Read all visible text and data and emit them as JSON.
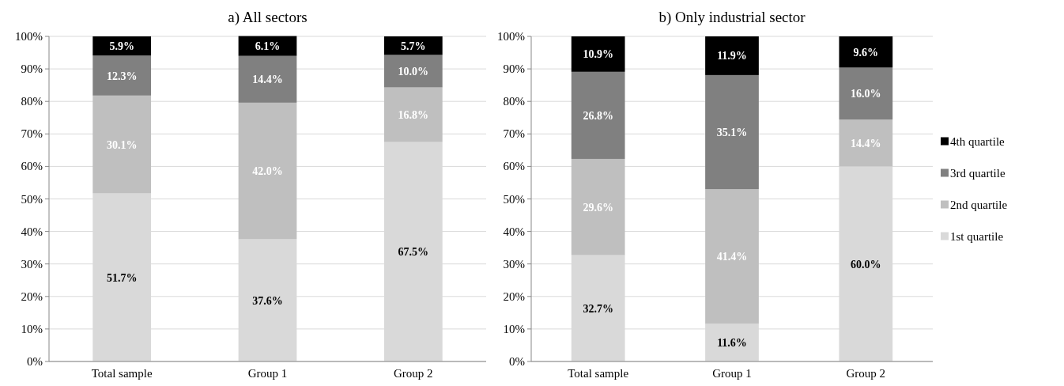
{
  "chart_data": [
    {
      "type": "bar",
      "title": "a) All sectors",
      "stacked": true,
      "categories": [
        "Total sample",
        "Group 1",
        "Group 2"
      ],
      "series": [
        {
          "color": "#d9d9d9",
          "values": [
            51.7,
            37.6,
            67.5
          ],
          "value_labels": [
            "51.7%",
            "37.6%",
            "67.5%"
          ]
        },
        {
          "color": "#bfbfbf",
          "values": [
            30.1,
            42.0,
            16.8
          ],
          "value_labels": [
            "30.1%",
            "42.0%",
            "16.8%"
          ]
        },
        {
          "color": "#808080",
          "values": [
            12.3,
            14.4,
            10.0
          ],
          "value_labels": [
            "12.3%",
            "14.4%",
            "10.0%"
          ]
        },
        {
          "color": "#000000",
          "values": [
            5.9,
            6.1,
            5.7
          ],
          "value_labels": [
            "5.9%",
            "6.1%",
            "5.7%"
          ]
        }
      ],
      "ylim": [
        0,
        100
      ],
      "yticks": [
        {
          "value": 0,
          "label": "0%"
        },
        {
          "value": 10,
          "label": "10%"
        },
        {
          "value": 20,
          "label": "20%"
        },
        {
          "value": 30,
          "label": "30%"
        },
        {
          "value": 40,
          "label": "40%"
        },
        {
          "value": 50,
          "label": "50%"
        },
        {
          "value": 60,
          "label": "60%"
        },
        {
          "value": 70,
          "label": "70%"
        },
        {
          "value": 80,
          "label": "80%"
        },
        {
          "value": 90,
          "label": "90%"
        },
        {
          "value": 100,
          "label": "100%"
        }
      ],
      "grid": "y",
      "legend": false
    },
    {
      "type": "bar",
      "title": "b) Only industrial sector",
      "stacked": true,
      "categories": [
        "Total sample",
        "Group 1",
        "Group 2"
      ],
      "series": [
        {
          "name": "1st quartile",
          "color": "#d9d9d9",
          "values": [
            32.7,
            11.6,
            60.0
          ],
          "value_labels": [
            "32.7%",
            "11.6%",
            "60.0%"
          ]
        },
        {
          "name": "2nd quartile",
          "color": "#bfbfbf",
          "values": [
            29.6,
            41.4,
            14.4
          ],
          "value_labels": [
            "29.6%",
            "41.4%",
            "14.4%"
          ]
        },
        {
          "name": "3rd quartile",
          "color": "#808080",
          "values": [
            26.8,
            35.1,
            16.0
          ],
          "value_labels": [
            "26.8%",
            "35.1%",
            "16.0%"
          ]
        },
        {
          "name": "4th quartile",
          "color": "#000000",
          "values": [
            10.9,
            11.9,
            9.6
          ],
          "value_labels": [
            "10.9%",
            "11.9%",
            "9.6%"
          ]
        }
      ],
      "ylim": [
        0,
        100
      ],
      "yticks": [
        {
          "value": 0,
          "label": "0%"
        },
        {
          "value": 10,
          "label": "10%"
        },
        {
          "value": 20,
          "label": "20%"
        },
        {
          "value": 30,
          "label": "30%"
        },
        {
          "value": 40,
          "label": "40%"
        },
        {
          "value": 50,
          "label": "50%"
        },
        {
          "value": 60,
          "label": "60%"
        },
        {
          "value": 70,
          "label": "70%"
        },
        {
          "value": 80,
          "label": "80%"
        },
        {
          "value": 90,
          "label": "90%"
        },
        {
          "value": 100,
          "label": "100%"
        }
      ],
      "grid": "y",
      "legend": "right"
    }
  ]
}
